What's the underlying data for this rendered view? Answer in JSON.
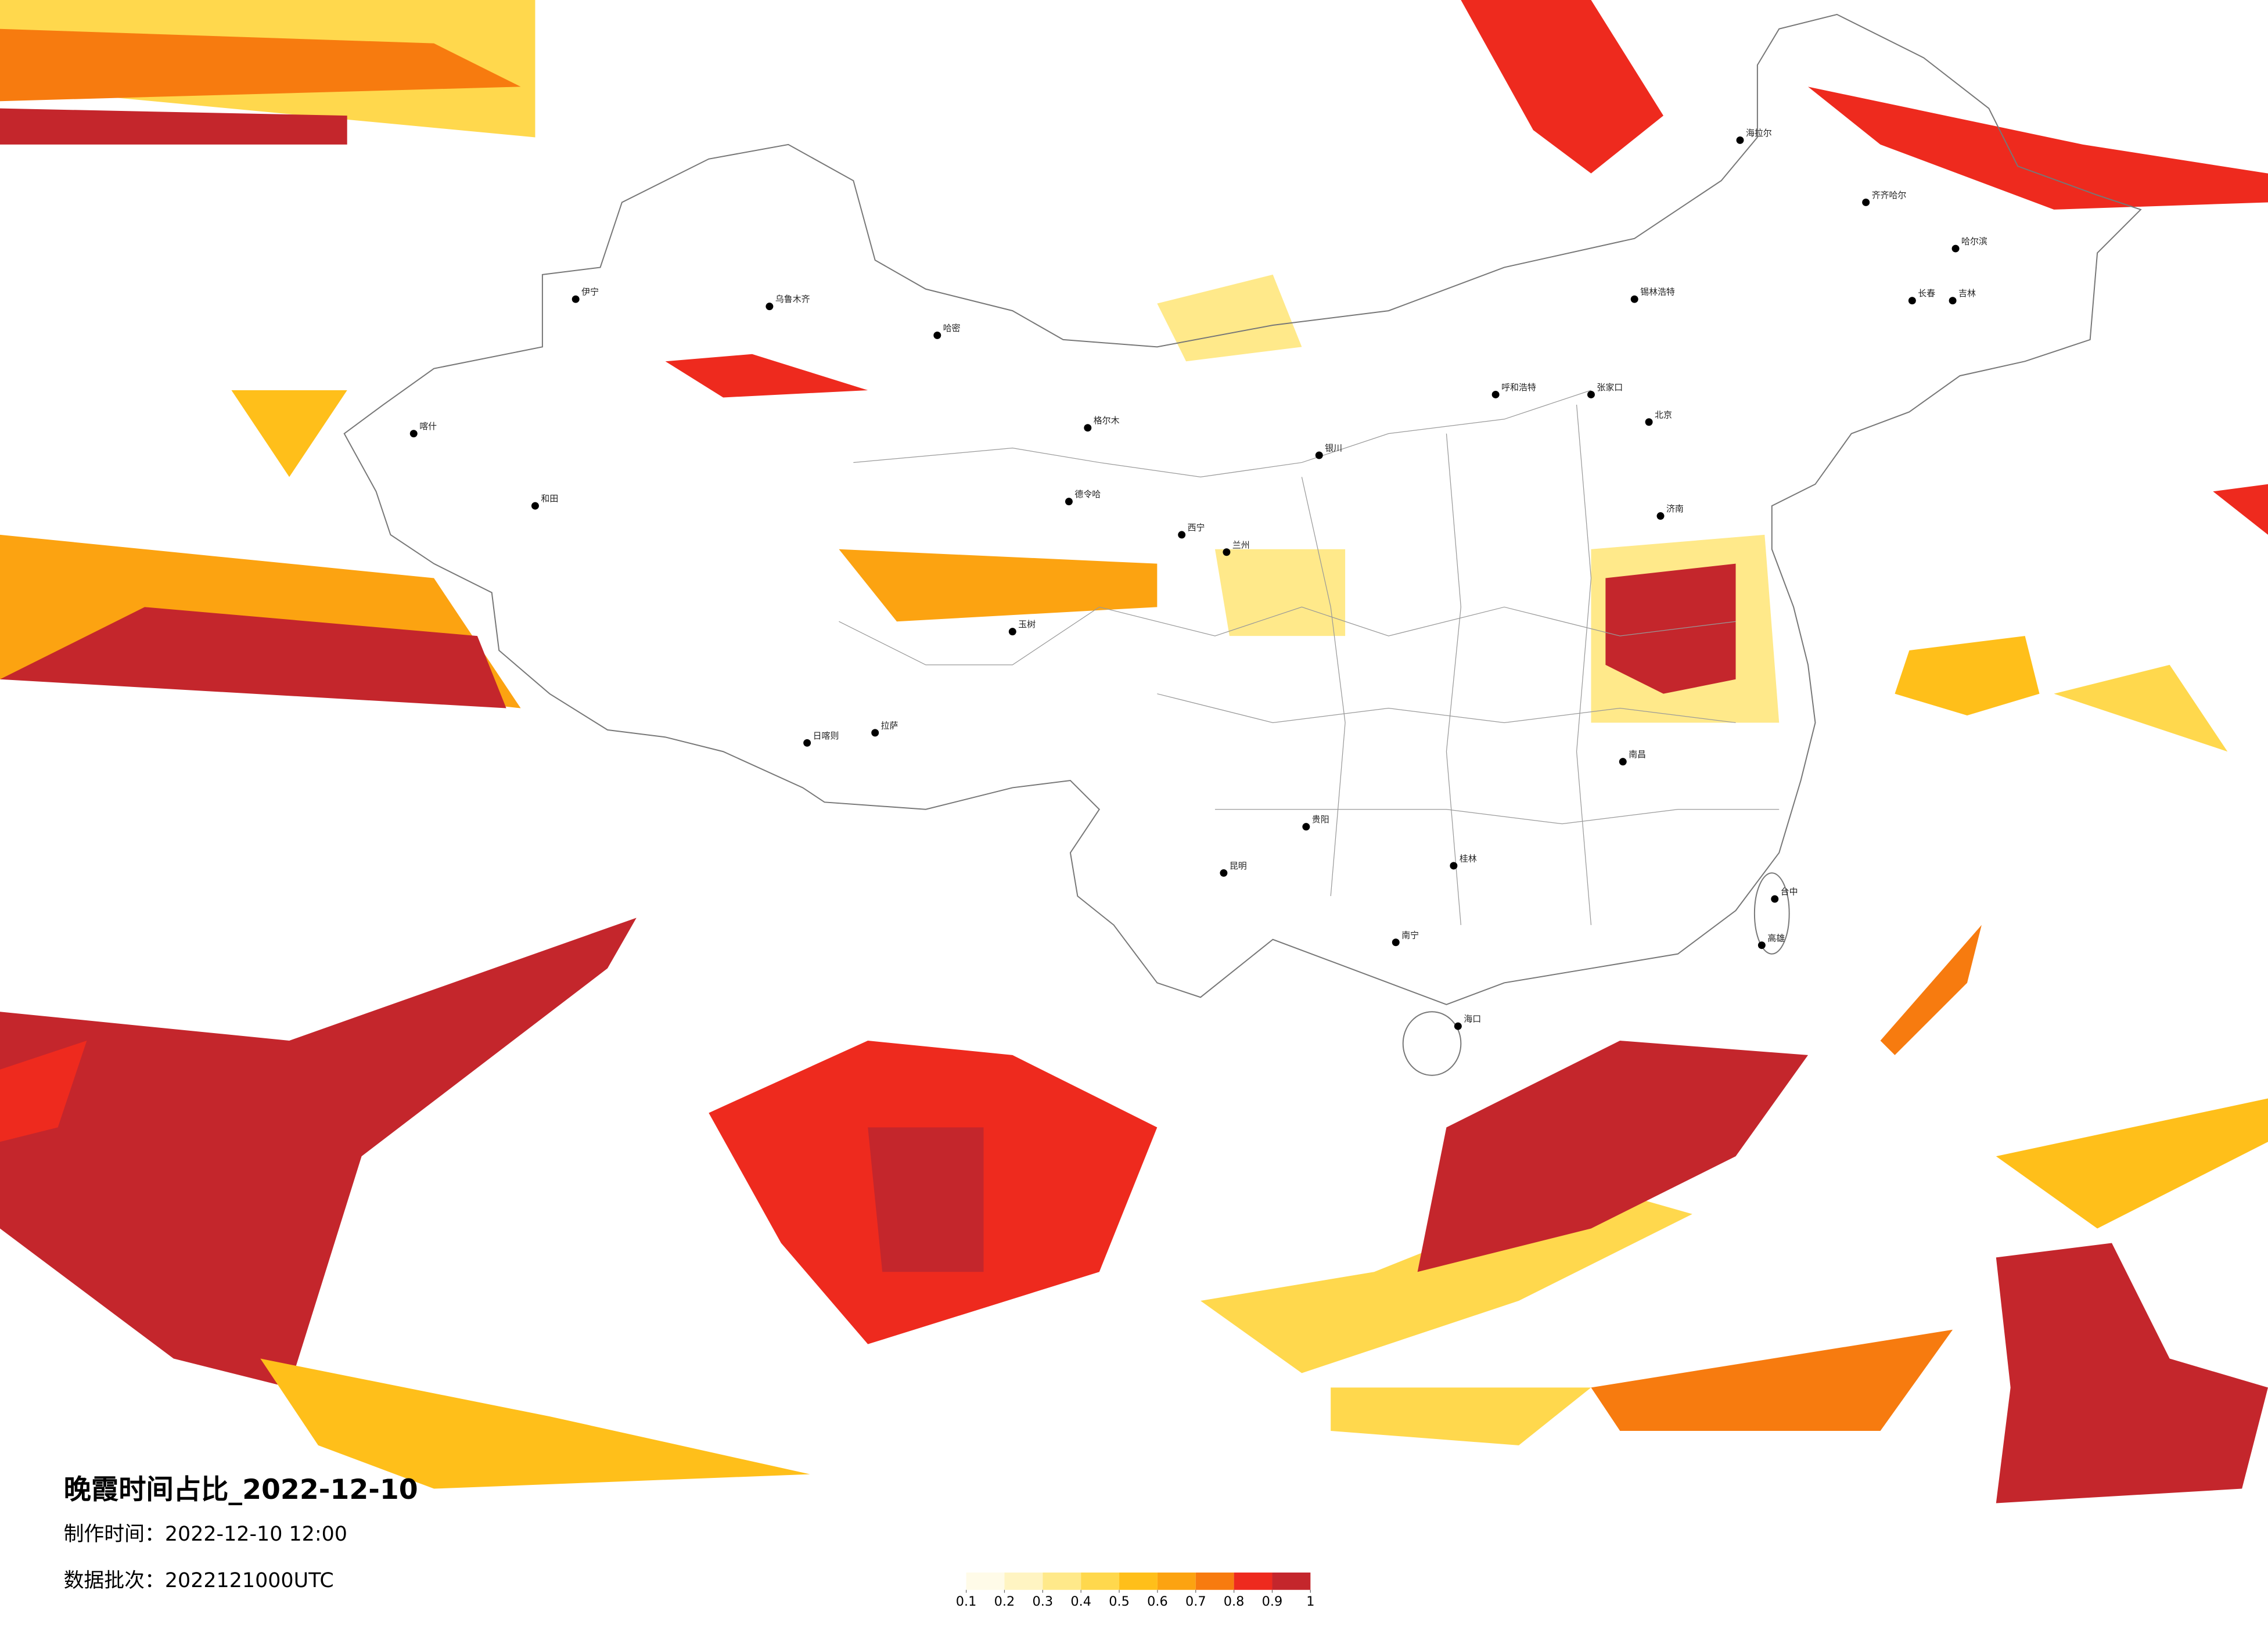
{
  "header": {
    "title": "晚霞时间占比_2022-12-10",
    "made_time": "制作时间：2022-12-10 12:00",
    "batch": "数据批次：2022121000UTC"
  },
  "legend": {
    "colors": [
      "#fffbe8",
      "#fff4c2",
      "#ffe98a",
      "#ffd84d",
      "#ffbf1a",
      "#fca311",
      "#f77b0f",
      "#ee2a1e",
      "#c4262c"
    ],
    "ticks": [
      0.1,
      0.2,
      0.3,
      0.4,
      0.5,
      0.6,
      0.7,
      0.8,
      0.9,
      1
    ]
  },
  "cities": [
    "齐齐哈尔",
    "哈尔滨",
    "长春",
    "吉林",
    "海拉尔",
    "锡林浩特",
    "呼和浩特",
    "张家口",
    "北京",
    "济南",
    "银川",
    "兰州",
    "西宁",
    "乌鲁木齐",
    "伊宁",
    "喀什",
    "和田",
    "哈密",
    "格尔木",
    "德令哈",
    "玉树",
    "拉萨",
    "日喀则",
    "昆明",
    "贵阳",
    "南宁",
    "海口",
    "桂林",
    "南昌",
    "台中",
    "高雄"
  ]
}
